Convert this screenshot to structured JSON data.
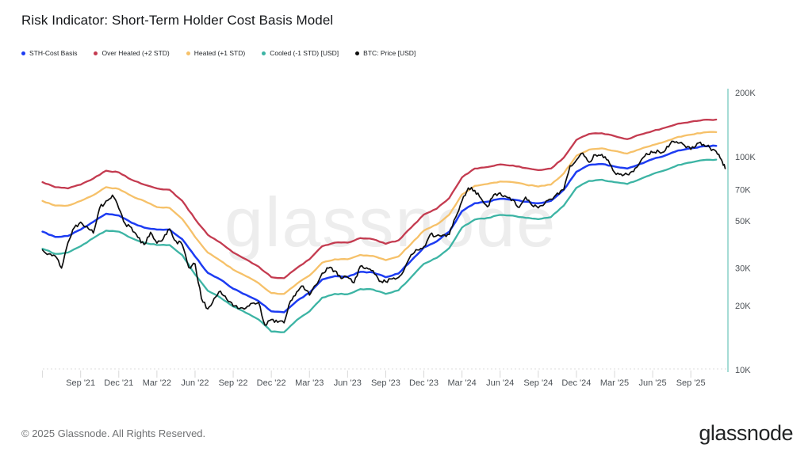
{
  "title": "Risk Indicator: Short-Term Holder Cost Basis Model",
  "watermark": "glassnode",
  "legend": {
    "items": [
      {
        "label": "STH-Cost Basis",
        "color": "#1d3cf2"
      },
      {
        "label": "Over Heated (+2 STD)",
        "color": "#c43b50"
      },
      {
        "label": "Heated (+1 STD)",
        "color": "#f6c169"
      },
      {
        "label": "Cooled (-1 STD) [USD]",
        "color": "#3cb4a4"
      },
      {
        "label": "BTC: Price [USD]",
        "color": "#0e0e0e"
      }
    ]
  },
  "footer": {
    "copyright": "© 2025 Glassnode. All Rights Reserved.",
    "brand": "glassnode"
  },
  "chart_data": {
    "type": "line",
    "title": "Risk Indicator: Short-Term Holder Cost Basis Model",
    "x_unit": "months since 2021-06 (0 = Jun '21, quarterly ticks)",
    "y_unit": "USD (thousands), logarithmic scale",
    "ylim_thousands": [
      10,
      207
    ],
    "grid": "dotted baseline at 10K only",
    "legend_position": "top-left",
    "y_ticks": [
      {
        "label": "200K",
        "value": 200
      },
      {
        "label": "100K",
        "value": 100
      },
      {
        "label": "70K",
        "value": 70
      },
      {
        "label": "50K",
        "value": 50
      },
      {
        "label": "30K",
        "value": 30
      },
      {
        "label": "20K",
        "value": 20
      },
      {
        "label": "10K",
        "value": 10
      }
    ],
    "x_ticks": [
      {
        "month": 3,
        "label": "Sep '21"
      },
      {
        "month": 6,
        "label": "Dec '21"
      },
      {
        "month": 9,
        "label": "Mar '22"
      },
      {
        "month": 12,
        "label": "Jun '22"
      },
      {
        "month": 15,
        "label": "Sep '22"
      },
      {
        "month": 18,
        "label": "Dec '22"
      },
      {
        "month": 21,
        "label": "Mar '23"
      },
      {
        "month": 24,
        "label": "Jun '23"
      },
      {
        "month": 27,
        "label": "Sep '23"
      },
      {
        "month": 30,
        "label": "Dec '23"
      },
      {
        "month": 33,
        "label": "Mar '24"
      },
      {
        "month": 36,
        "label": "Jun '24"
      },
      {
        "month": 39,
        "label": "Sep '24"
      },
      {
        "month": 42,
        "label": "Dec '24"
      },
      {
        "month": 45,
        "label": "Mar '25"
      },
      {
        "month": 48,
        "label": "Jun '25"
      },
      {
        "month": 51,
        "label": "Sep '25"
      }
    ],
    "minor_tick_months": [
      0,
      3,
      6,
      9,
      12,
      15,
      18,
      21,
      24,
      27,
      30,
      33,
      36,
      39,
      42,
      45,
      48,
      51
    ],
    "series": [
      {
        "name": "Over Heated (+2 STD)",
        "color": "#c43b50",
        "width": 2.3,
        "jitter": 0.004,
        "values": [
          76,
          72,
          71,
          74,
          79,
          86,
          84.5,
          78,
          74,
          71,
          70,
          62,
          51,
          43,
          39.5,
          35.5,
          33,
          30.5,
          27.2,
          26.9,
          30,
          33,
          38,
          39.5,
          39.5,
          41.5,
          41,
          39,
          40.5,
          46.5,
          53.5,
          57,
          64,
          80,
          88,
          89.5,
          92,
          91,
          88.5,
          86.5,
          88,
          99,
          120,
          128,
          129,
          125,
          121,
          127,
          132,
          137,
          143,
          146,
          149,
          149.5
        ]
      },
      {
        "name": "Heated (+1 STD)",
        "color": "#f6c169",
        "width": 2.3,
        "jitter": 0.004,
        "values": [
          62,
          59,
          59,
          62,
          66,
          72,
          70.5,
          65.5,
          62,
          58,
          57.5,
          51,
          42,
          35.5,
          32.5,
          29.5,
          27.5,
          25.5,
          22.9,
          22.7,
          25.3,
          27.7,
          31.8,
          33,
          33,
          34.6,
          34.2,
          32.7,
          34,
          39,
          45,
          48,
          53.5,
          66.5,
          73,
          74.5,
          76.5,
          76,
          74,
          72.5,
          74,
          83.5,
          101,
          108,
          109.5,
          106.5,
          103.5,
          108.5,
          113.5,
          118,
          124,
          127,
          130,
          130.5
        ]
      },
      {
        "name": "Cooled (-1 STD) [USD]",
        "color": "#3cb4a4",
        "width": 2.3,
        "jitter": 0.004,
        "values": [
          37,
          35,
          35.5,
          38,
          41.5,
          45,
          44.5,
          41.5,
          39.5,
          38.5,
          38.5,
          34.5,
          28,
          23.5,
          21.8,
          19.8,
          18.5,
          17.2,
          15.1,
          15,
          17.1,
          18.8,
          21.8,
          22.7,
          22.6,
          23.9,
          23.8,
          22.7,
          23.6,
          27.2,
          31.4,
          33.5,
          37.3,
          46.5,
          50.7,
          51.6,
          53.3,
          52.9,
          51.7,
          50.9,
          52.1,
          58.9,
          71.5,
          77,
          78,
          76,
          74.5,
          78.5,
          83,
          86.5,
          91.5,
          94,
          96.5,
          97
        ]
      },
      {
        "name": "STH-Cost Basis",
        "color": "#1d3cf2",
        "width": 2.5,
        "jitter": 0.004,
        "values": [
          44.5,
          42,
          42.5,
          45.5,
          49.5,
          54,
          53,
          49,
          46.5,
          45.5,
          45.5,
          41,
          34,
          28.5,
          26.5,
          24,
          22.5,
          21,
          18.8,
          18.6,
          21,
          23,
          26.5,
          27.5,
          27.3,
          28.8,
          28.6,
          27.2,
          28.3,
          32.5,
          37.5,
          40,
          44.5,
          55.5,
          60.5,
          61.5,
          63.5,
          63,
          61.5,
          60.5,
          62,
          70,
          85,
          91.5,
          92.5,
          90,
          88,
          92.5,
          97.5,
          101.5,
          107,
          109.5,
          112,
          112.5
        ]
      },
      {
        "name": "BTC: Price [USD]",
        "color": "#0e0e0e",
        "width": 1.7,
        "jitter": 0.02,
        "x": [
          0,
          0.5,
          1,
          1.5,
          2,
          2.5,
          3,
          3.5,
          4,
          4.5,
          5,
          5.5,
          6,
          6.5,
          7,
          7.5,
          8,
          8.5,
          9,
          9.5,
          10,
          10.5,
          11,
          11.5,
          12,
          12.5,
          13,
          13.5,
          14,
          14.5,
          15,
          15.5,
          16,
          16.5,
          17,
          17.5,
          18,
          18.5,
          19,
          19.5,
          20,
          20.5,
          21,
          21.5,
          22,
          22.5,
          23,
          23.5,
          24,
          24.5,
          25,
          25.5,
          26,
          26.5,
          27,
          27.5,
          28,
          28.5,
          29,
          29.5,
          30,
          30.5,
          31,
          31.5,
          32,
          32.5,
          33,
          33.5,
          34,
          34.5,
          35,
          35.5,
          36,
          36.5,
          37,
          37.5,
          38,
          38.5,
          39,
          39.5,
          40,
          40.5,
          41,
          41.5,
          42,
          42.5,
          43,
          43.5,
          44,
          44.5,
          45,
          45.5,
          46,
          46.5,
          47,
          47.5,
          48,
          48.5,
          49,
          49.5,
          50,
          50.5,
          51,
          51.5,
          52,
          52.5,
          53,
          53.4,
          53.7
        ],
        "values": [
          36.5,
          35,
          34.2,
          30,
          39.5,
          46.5,
          49.3,
          47,
          43.8,
          57.5,
          62,
          66,
          57.2,
          48.5,
          46.5,
          41.8,
          38.7,
          44.2,
          39.3,
          41.2,
          45.8,
          40.2,
          38.6,
          30.2,
          31.4,
          21.6,
          19.3,
          21.6,
          23.4,
          21.4,
          19.9,
          19.4,
          19.5,
          20.5,
          20.7,
          16.2,
          17.2,
          16.7,
          16.6,
          21,
          23.2,
          24.7,
          22.4,
          25,
          28.4,
          30,
          29.1,
          26.8,
          27.2,
          25.6,
          30.6,
          30.1,
          29.2,
          26,
          25.9,
          26.7,
          27.1,
          30,
          34.7,
          36.5,
          37.8,
          43.1,
          42.6,
          42.9,
          43.2,
          51.9,
          62,
          71.4,
          69.5,
          63.7,
          58.2,
          66.3,
          67.7,
          64.8,
          62.7,
          57.8,
          64.6,
          59.2,
          57.5,
          60.2,
          63.2,
          67.5,
          70,
          90.6,
          96.5,
          104,
          94.3,
          102.2,
          102.5,
          96.4,
          84.4,
          83,
          82.6,
          85.2,
          94.3,
          103.6,
          104.7,
          105.6,
          107.3,
          118.2,
          115.9,
          113.1,
          108.3,
          115.6,
          114.2,
          110.3,
          105.8,
          97,
          88
        ]
      }
    ],
    "axis_colors": {
      "right_axis_line": "#a6dcd5",
      "tick": "#d8d8d8",
      "label": "#4d5257",
      "dotted_baseline": "#dedede"
    }
  }
}
